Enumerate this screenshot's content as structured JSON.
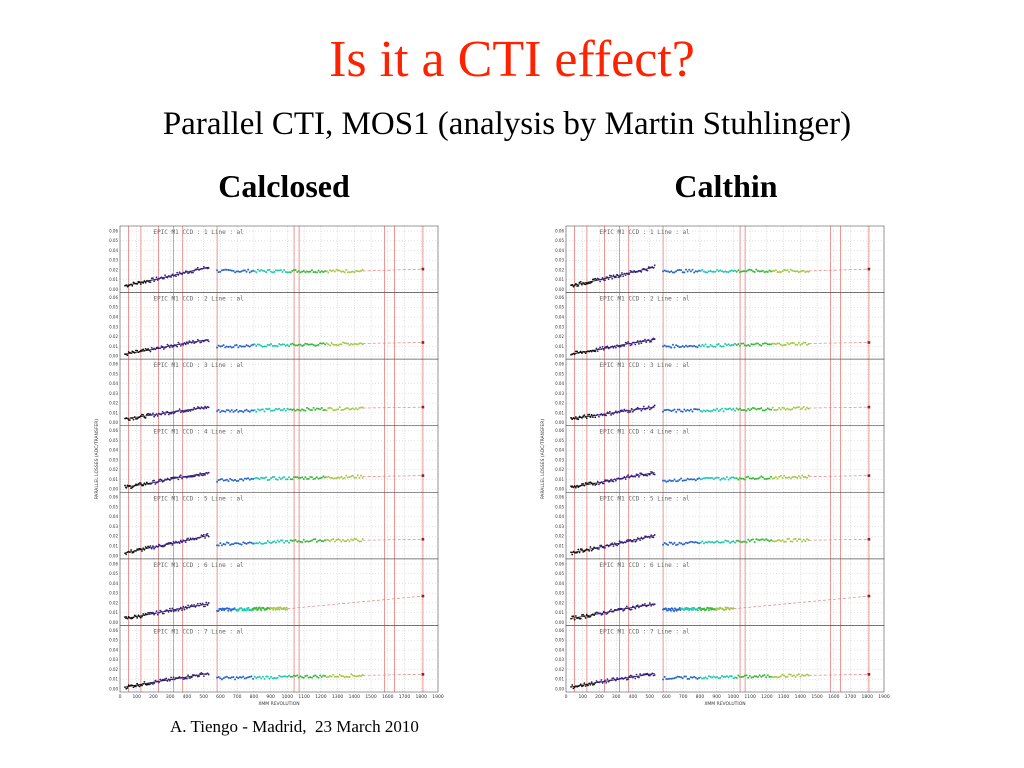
{
  "slide": {
    "title": "Is it a CTI effect?",
    "title_color": "#ff2200",
    "subtitle": "Parallel CTI, MOS1 (analysis by Martin Stuhlinger)",
    "footer": "A. Tiengo - Madrid,  23 March 2010"
  },
  "figures": [
    {
      "heading": "Calclosed"
    },
    {
      "heading": "Calthin"
    }
  ],
  "chart_data": [
    {
      "type": "scatter",
      "title": "Calclosed",
      "ylabel": "PARALLEL LOSSES (ADC/TRANSFER)",
      "xlabel": "XMM REVOLUTION",
      "x_ticks": [
        0,
        100,
        200,
        300,
        400,
        500,
        600,
        700,
        800,
        900,
        1000,
        1100,
        1200,
        1300,
        1400,
        1500,
        1600,
        1700,
        1800,
        1900
      ],
      "y_ticks": [
        "0.00",
        "0.01",
        "0.02",
        "0.03",
        "0.04",
        "0.05",
        "0.06"
      ],
      "xlim": [
        0,
        1900
      ],
      "ylim": [
        0,
        0.06
      ],
      "panels": [
        {
          "label": "EPIC M1    CCD : 1  Line : al",
          "early": [
            [
              30,
              0.004
            ],
            [
              200,
              0.01
            ],
            [
              350,
              0.016
            ],
            [
              530,
              0.023
            ]
          ],
          "late": [
            [
              580,
              0.019
            ],
            [
              900,
              0.019
            ],
            [
              1200,
              0.019
            ],
            [
              1450,
              0.019
            ]
          ],
          "fit_end": 0.021
        },
        {
          "label": "EPIC M1    CCD : 2  Line : al",
          "early": [
            [
              30,
              0.002
            ],
            [
              200,
              0.007
            ],
            [
              350,
              0.012
            ],
            [
              530,
              0.017
            ]
          ],
          "late": [
            [
              580,
              0.01
            ],
            [
              900,
              0.011
            ],
            [
              1200,
              0.012
            ],
            [
              1450,
              0.013
            ]
          ],
          "fit_end": 0.014
        },
        {
          "label": "EPIC M1    CCD : 3  Line : al",
          "early": [
            [
              30,
              0.004
            ],
            [
              200,
              0.008
            ],
            [
              350,
              0.012
            ],
            [
              530,
              0.016
            ]
          ],
          "late": [
            [
              580,
              0.012
            ],
            [
              900,
              0.013
            ],
            [
              1200,
              0.014
            ],
            [
              1450,
              0.015
            ]
          ],
          "fit_end": 0.016
        },
        {
          "label": "EPIC M1    CCD : 4  Line : al",
          "early": [
            [
              30,
              0.002
            ],
            [
              200,
              0.007
            ],
            [
              350,
              0.012
            ],
            [
              530,
              0.017
            ]
          ],
          "late": [
            [
              580,
              0.009
            ],
            [
              900,
              0.011
            ],
            [
              1200,
              0.012
            ],
            [
              1450,
              0.013
            ]
          ],
          "fit_end": 0.014
        },
        {
          "label": "EPIC M1    CCD : 5  Line : al",
          "early": [
            [
              30,
              0.003
            ],
            [
              200,
              0.009
            ],
            [
              350,
              0.014
            ],
            [
              530,
              0.021
            ]
          ],
          "late": [
            [
              580,
              0.012
            ],
            [
              900,
              0.014
            ],
            [
              1200,
              0.016
            ],
            [
              1450,
              0.016
            ]
          ],
          "fit_end": 0.017
        },
        {
          "label": "EPIC M1    CCD : 6  Line : al",
          "early": [
            [
              30,
              0.004
            ],
            [
              200,
              0.009
            ],
            [
              350,
              0.014
            ],
            [
              530,
              0.019
            ]
          ],
          "late": [
            [
              580,
              0.013
            ],
            [
              900,
              0.014
            ],
            [
              1000,
              0.014
            ]
          ],
          "fit_end": 0.027
        },
        {
          "label": "EPIC M1    CCD : 7  Line : al",
          "early": [
            [
              30,
              0.002
            ],
            [
              200,
              0.007
            ],
            [
              350,
              0.011
            ],
            [
              530,
              0.016
            ]
          ],
          "late": [
            [
              580,
              0.011
            ],
            [
              900,
              0.012
            ],
            [
              1200,
              0.013
            ],
            [
              1450,
              0.014
            ]
          ],
          "fit_end": 0.015
        }
      ]
    },
    {
      "type": "scatter",
      "title": "Calthin",
      "ylabel": "PARALLEL LOSSES (ADC/TRANSFER)",
      "xlabel": "XMM REVOLUTION",
      "x_ticks": [
        0,
        100,
        200,
        300,
        400,
        500,
        600,
        700,
        800,
        900,
        1000,
        1100,
        1200,
        1300,
        1400,
        1500,
        1600,
        1700,
        1800,
        1900
      ],
      "y_ticks": [
        "0.00",
        "0.01",
        "0.02",
        "0.03",
        "0.04",
        "0.05",
        "0.06"
      ],
      "xlim": [
        0,
        1900
      ],
      "ylim": [
        0,
        0.06
      ],
      "panels": [
        {
          "label": "EPIC M1    CCD : 1  Line : al",
          "early": [
            [
              30,
              0.004
            ],
            [
              200,
              0.01
            ],
            [
              350,
              0.016
            ],
            [
              530,
              0.023
            ]
          ],
          "late": [
            [
              580,
              0.019
            ],
            [
              900,
              0.019
            ],
            [
              1200,
              0.019
            ],
            [
              1450,
              0.019
            ]
          ],
          "fit_end": 0.021
        },
        {
          "label": "EPIC M1    CCD : 2  Line : al",
          "early": [
            [
              30,
              0.002
            ],
            [
              200,
              0.007
            ],
            [
              350,
              0.012
            ],
            [
              530,
              0.017
            ]
          ],
          "late": [
            [
              580,
              0.01
            ],
            [
              900,
              0.011
            ],
            [
              1200,
              0.012
            ],
            [
              1450,
              0.013
            ]
          ],
          "fit_end": 0.014
        },
        {
          "label": "EPIC M1    CCD : 3  Line : al",
          "early": [
            [
              30,
              0.004
            ],
            [
              200,
              0.008
            ],
            [
              350,
              0.012
            ],
            [
              530,
              0.016
            ]
          ],
          "late": [
            [
              580,
              0.012
            ],
            [
              900,
              0.013
            ],
            [
              1200,
              0.014
            ],
            [
              1450,
              0.015
            ]
          ],
          "fit_end": 0.016
        },
        {
          "label": "EPIC M1    CCD : 4  Line : al",
          "early": [
            [
              30,
              0.002
            ],
            [
              200,
              0.007
            ],
            [
              350,
              0.012
            ],
            [
              530,
              0.017
            ]
          ],
          "late": [
            [
              580,
              0.009
            ],
            [
              900,
              0.011
            ],
            [
              1200,
              0.012
            ],
            [
              1450,
              0.013
            ]
          ],
          "fit_end": 0.014
        },
        {
          "label": "EPIC M1    CCD : 5  Line : al",
          "early": [
            [
              30,
              0.003
            ],
            [
              200,
              0.009
            ],
            [
              350,
              0.014
            ],
            [
              530,
              0.021
            ]
          ],
          "late": [
            [
              580,
              0.012
            ],
            [
              900,
              0.014
            ],
            [
              1200,
              0.016
            ],
            [
              1450,
              0.016
            ]
          ],
          "fit_end": 0.017
        },
        {
          "label": "EPIC M1    CCD : 6  Line : al",
          "early": [
            [
              30,
              0.004
            ],
            [
              200,
              0.009
            ],
            [
              350,
              0.014
            ],
            [
              530,
              0.019
            ]
          ],
          "late": [
            [
              580,
              0.013
            ],
            [
              900,
              0.014
            ],
            [
              1000,
              0.014
            ]
          ],
          "fit_end": 0.027
        },
        {
          "label": "EPIC M1    CCD : 7  Line : al",
          "early": [
            [
              30,
              0.002
            ],
            [
              200,
              0.007
            ],
            [
              350,
              0.011
            ],
            [
              530,
              0.016
            ]
          ],
          "late": [
            [
              580,
              0.011
            ],
            [
              900,
              0.012
            ],
            [
              1200,
              0.013
            ],
            [
              1450,
              0.014
            ]
          ],
          "fit_end": 0.015
        }
      ]
    }
  ],
  "colors": {
    "early_points": "#3a1d8c",
    "late_points_1": "#2a66c8",
    "late_points_2": "#22c9b0",
    "late_points_3": "#3cb83c",
    "late_points_4": "#a8c84a",
    "red_marker_lines": "#e05050",
    "fit_line": "#e88080",
    "grid": "#bdbdbd",
    "end_marker": "#8b2222"
  }
}
